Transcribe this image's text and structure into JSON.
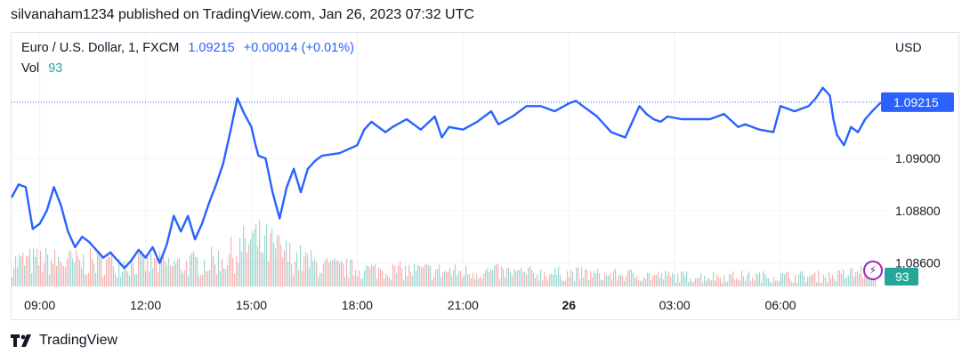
{
  "header": {
    "published": "silvanaham1234 published on TradingView.com, Jan 26, 2023 07:32 UTC"
  },
  "legend": {
    "symbol": "Euro / U.S. Dollar, 1, FXCM",
    "price": "1.09215",
    "change": "+0.00014 (+0.01%)",
    "vol_label": "Vol",
    "vol_value": "93"
  },
  "footer": {
    "brand": "TradingView"
  },
  "colors": {
    "line": "#2962ff",
    "vol_up": "#26a69a",
    "vol_down": "#ef5350",
    "price_tag": "#2962ff",
    "vol_tag": "#26a69a",
    "grid": "#f0f3fa"
  },
  "icons": {
    "alert": "lightning-bolt-icon",
    "brand": "tradingview-logo-icon"
  },
  "chart_data": {
    "type": "line",
    "title": "Euro / U.S. Dollar, 1, FXCM",
    "currency_label": "USD",
    "ylim": [
      1.0851,
      1.0948
    ],
    "y_ticks": [
      "1.08600",
      "1.08800",
      "1.09000",
      "1.09215"
    ],
    "y_tick_values": [
      1.086,
      1.088,
      1.09,
      1.09215
    ],
    "current_price": 1.09215,
    "current_price_label": "1.09215",
    "current_volume_label": "93",
    "x_range": [
      8.2,
      32.85
    ],
    "x_ticks": [
      {
        "label": "09:00",
        "hour": 9,
        "bold": false
      },
      {
        "label": "12:00",
        "hour": 12,
        "bold": false
      },
      {
        "label": "15:00",
        "hour": 15,
        "bold": false
      },
      {
        "label": "18:00",
        "hour": 18,
        "bold": false
      },
      {
        "label": "21:00",
        "hour": 21,
        "bold": false
      },
      {
        "label": "26",
        "hour": 24,
        "bold": true
      },
      {
        "label": "03:00",
        "hour": 27,
        "bold": false
      },
      {
        "label": "06:00",
        "hour": 30,
        "bold": false
      }
    ],
    "grid": true,
    "series": [
      {
        "x": [
          8.2,
          8.4,
          8.6,
          8.8,
          9.0,
          9.2,
          9.4,
          9.6,
          9.8,
          10.0,
          10.2,
          10.4,
          10.6,
          10.8,
          11.0,
          11.2,
          11.4,
          11.6,
          11.8,
          12.0,
          12.2,
          12.4,
          12.6,
          12.8,
          13.0,
          13.2,
          13.4,
          13.6,
          13.8,
          14.0,
          14.2,
          14.4,
          14.6,
          14.8,
          15.0,
          15.1,
          15.2,
          15.4,
          15.6,
          15.8,
          16.0,
          16.2,
          16.4,
          16.6,
          16.8,
          17.0,
          17.5,
          18.0,
          18.2,
          18.4,
          18.8,
          19.0,
          19.4,
          19.8,
          20.2,
          20.4,
          20.6,
          21.0,
          21.4,
          21.8,
          22.0,
          22.4,
          22.8,
          23.2,
          23.6,
          24.0,
          24.2,
          24.4,
          24.6,
          24.8,
          25.2,
          25.6,
          26.0,
          26.2,
          26.4,
          26.6,
          26.8,
          27.2,
          27.6,
          28.0,
          28.4,
          28.8,
          29.0,
          29.4,
          29.8,
          30.0,
          30.4,
          30.8,
          31.0,
          31.2,
          31.4,
          31.5,
          31.6,
          31.8,
          32.0,
          32.2,
          32.4,
          32.6,
          32.85
        ],
        "y": [
          1.0885,
          1.089,
          1.0889,
          1.0873,
          1.0875,
          1.088,
          1.0889,
          1.0882,
          1.0872,
          1.0866,
          1.087,
          1.0868,
          1.0865,
          1.0862,
          1.0864,
          1.0861,
          1.0858,
          1.0861,
          1.0865,
          1.0862,
          1.0866,
          1.086,
          1.0867,
          1.0878,
          1.0872,
          1.0878,
          1.0869,
          1.0875,
          1.0883,
          1.089,
          1.0898,
          1.091,
          1.0923,
          1.0917,
          1.0912,
          1.0906,
          1.0901,
          1.09,
          1.0887,
          1.0877,
          1.0889,
          1.0896,
          1.0887,
          1.0896,
          1.0899,
          1.0901,
          1.0902,
          1.0905,
          1.0911,
          1.0914,
          1.091,
          1.0912,
          1.0915,
          1.0911,
          1.0916,
          1.0908,
          1.0912,
          1.0911,
          1.0914,
          1.0918,
          1.0913,
          1.0916,
          1.092,
          1.092,
          1.0918,
          1.0921,
          1.0922,
          1.092,
          1.0918,
          1.0916,
          1.091,
          1.0908,
          1.092,
          1.0917,
          1.0915,
          1.0914,
          1.0916,
          1.0915,
          1.0915,
          1.0915,
          1.0917,
          1.0912,
          1.0913,
          1.0911,
          1.091,
          1.092,
          1.0918,
          1.092,
          1.0923,
          1.0927,
          1.0924,
          1.0915,
          1.0909,
          1.0905,
          1.0912,
          1.091,
          1.0915,
          1.0918,
          1.09215
        ]
      }
    ],
    "volume": {
      "x": [
        8.2,
        9.0,
        10.0,
        11.0,
        12.0,
        13.0,
        14.0,
        14.5,
        15.0,
        15.5,
        16.0,
        16.5,
        17.0,
        18.0,
        19.0,
        20.0,
        21.0,
        22.0,
        23.0,
        24.0,
        25.0,
        26.0,
        27.0,
        28.0,
        29.0,
        30.0,
        31.0,
        31.5,
        32.0,
        32.85
      ],
      "values": [
        17,
        18,
        17,
        17,
        16,
        15,
        18,
        23,
        32,
        28,
        22,
        18,
        14,
        12,
        11,
        11,
        10,
        10,
        9,
        9,
        8,
        8,
        7,
        7,
        7,
        7,
        7,
        7,
        9,
        14
      ]
    }
  }
}
